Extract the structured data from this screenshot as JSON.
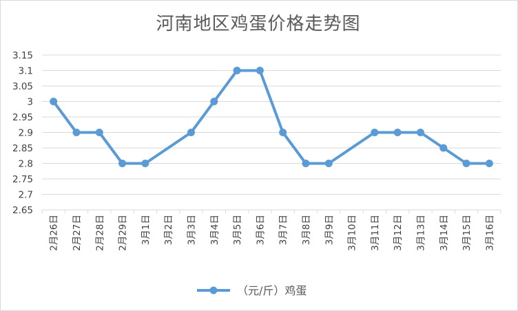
{
  "chart_data": {
    "type": "line",
    "title": "河南地区鸡蛋价格走势图",
    "categories": [
      "2月26日",
      "2月27日",
      "2月28日",
      "2月29日",
      "3月1日",
      "3月2日",
      "3月3日",
      "3月4日",
      "3月5日",
      "3月6日",
      "3月7日",
      "3月8日",
      "3月9日",
      "3月10日",
      "3月11日",
      "3月12日",
      "3月13日",
      "3月14日",
      "3月15日",
      "3月16日"
    ],
    "series": [
      {
        "name": "（元/斤）鸡蛋",
        "values": [
          3.0,
          2.9,
          2.9,
          2.8,
          2.8,
          null,
          2.9,
          3.0,
          3.1,
          3.1,
          2.9,
          2.8,
          2.8,
          null,
          2.9,
          2.9,
          2.9,
          2.85,
          2.8,
          2.8
        ]
      }
    ],
    "yticks": [
      "3.15",
      "3.1",
      "3.05",
      "3",
      "2.95",
      "2.9",
      "2.85",
      "2.8",
      "2.75",
      "2.7",
      "2.65"
    ],
    "ylim": [
      2.65,
      3.15
    ],
    "grid": true,
    "legend": "bottom",
    "color": "#5b9bd5"
  }
}
